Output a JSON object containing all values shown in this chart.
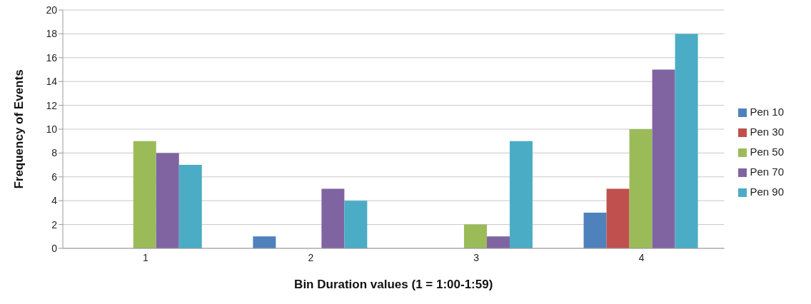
{
  "chart_data": {
    "type": "bar",
    "xlabel": "Bin Duration values (1 = 1:00-1:59)",
    "ylabel": "Frequency of Events",
    "categories": [
      "1",
      "2",
      "3",
      "4"
    ],
    "series": [
      {
        "name": "Pen 10",
        "color": "#4f81bd",
        "values": [
          0,
          1,
          0,
          3
        ]
      },
      {
        "name": "Pen 30",
        "color": "#c0504d",
        "values": [
          0,
          0,
          0,
          5
        ]
      },
      {
        "name": "Pen 50",
        "color": "#9bbb59",
        "values": [
          9,
          0,
          2,
          10
        ]
      },
      {
        "name": "Pen 70",
        "color": "#8064a2",
        "values": [
          8,
          5,
          1,
          15
        ]
      },
      {
        "name": "Pen 90",
        "color": "#4bacc6",
        "values": [
          7,
          4,
          9,
          18
        ]
      }
    ],
    "ylim": [
      0,
      20
    ],
    "yticks": [
      0,
      2,
      4,
      6,
      8,
      10,
      12,
      14,
      16,
      18,
      20
    ],
    "grid": "y",
    "legend": "right"
  }
}
